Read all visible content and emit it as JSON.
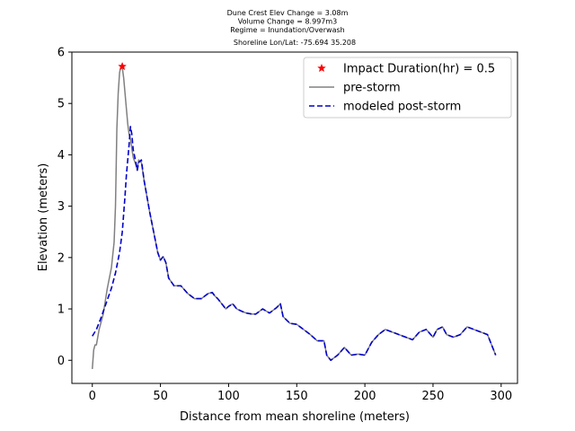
{
  "chart_data": {
    "type": "line",
    "title_lines": [
      "Dune Crest Elev Change = 3.08m",
      "Volume Change = 8.997m3",
      "Regime = Inundation/Overwash",
      "Shoreline Lon/Lat: -75.694 35.208"
    ],
    "xlabel": "Distance from mean shoreline (meters)",
    "ylabel": "Elevation (meters)",
    "xlim": [
      -15,
      312
    ],
    "ylim": [
      -0.45,
      6.0
    ],
    "xticks": [
      0,
      50,
      100,
      150,
      200,
      250,
      300
    ],
    "yticks": [
      0,
      1,
      2,
      3,
      4,
      5,
      6
    ],
    "legend_position": "upper-right",
    "grid": false,
    "series": [
      {
        "name": "Impact Duration(hr) = 0.5",
        "kind": "marker",
        "color": "#ff0000",
        "x": [
          22
        ],
        "y": [
          5.72
        ]
      },
      {
        "name": "pre-storm",
        "kind": "line",
        "color": "#808080",
        "x": [
          0,
          1,
          2,
          3,
          5,
          8,
          11,
          14,
          16,
          17,
          18,
          19,
          20,
          21,
          22,
          23,
          24,
          25,
          26,
          27,
          28,
          30,
          32,
          33,
          34,
          36,
          38,
          40,
          42,
          45,
          48,
          50,
          52,
          54,
          56,
          60,
          65,
          70,
          75,
          80,
          85,
          88,
          90,
          92,
          95,
          98,
          100,
          103,
          106,
          110,
          113,
          117,
          120,
          125,
          130,
          135,
          138,
          140,
          145,
          150,
          155,
          160,
          165,
          170,
          172,
          175,
          180,
          185,
          190,
          195,
          200,
          205,
          210,
          215,
          220,
          225,
          230,
          235,
          240,
          245,
          250,
          253,
          257,
          260,
          265,
          270,
          275,
          280,
          285,
          290,
          293,
          296
        ],
        "y": [
          -0.17,
          0.2,
          0.3,
          0.3,
          0.6,
          0.9,
          1.4,
          1.8,
          2.3,
          3.0,
          4.5,
          5.2,
          5.6,
          5.72,
          5.7,
          5.5,
          5.2,
          4.9,
          4.6,
          4.4,
          4.3,
          3.95,
          3.8,
          3.7,
          3.9,
          3.85,
          3.5,
          3.2,
          2.9,
          2.5,
          2.1,
          1.95,
          2.02,
          1.9,
          1.6,
          1.45,
          1.45,
          1.3,
          1.2,
          1.2,
          1.3,
          1.32,
          1.25,
          1.2,
          1.1,
          1.0,
          1.05,
          1.1,
          1.0,
          0.95,
          0.92,
          0.9,
          0.9,
          1.0,
          0.92,
          1.02,
          1.1,
          0.85,
          0.72,
          0.7,
          0.6,
          0.5,
          0.38,
          0.38,
          0.1,
          0.0,
          0.1,
          0.25,
          0.1,
          0.12,
          0.1,
          0.35,
          0.5,
          0.6,
          0.55,
          0.5,
          0.45,
          0.4,
          0.55,
          0.6,
          0.45,
          0.6,
          0.65,
          0.5,
          0.45,
          0.5,
          0.65,
          0.6,
          0.55,
          0.5,
          0.3,
          0.1
        ],
        "style": "solid"
      },
      {
        "name": "modeled post-storm",
        "kind": "line",
        "color": "#0000cc",
        "x": [
          0,
          3,
          6,
          10,
          14,
          17,
          20,
          22,
          24,
          25,
          26,
          27,
          28,
          29,
          30,
          32,
          33,
          34,
          36,
          38,
          40,
          42,
          45,
          48,
          50,
          52,
          54,
          56,
          60,
          65,
          70,
          75,
          80,
          85,
          88,
          90,
          92,
          95,
          98,
          100,
          103,
          106,
          110,
          113,
          117,
          120,
          125,
          130,
          135,
          138,
          140,
          145,
          150,
          155,
          160,
          165,
          170,
          172,
          175,
          180,
          185,
          190,
          195,
          200,
          205,
          210,
          215,
          220,
          225,
          230,
          235,
          240,
          245,
          250,
          253,
          257,
          260,
          265,
          270,
          275,
          280,
          285,
          290,
          293,
          296
        ],
        "y": [
          0.47,
          0.6,
          0.8,
          1.1,
          1.4,
          1.7,
          2.1,
          2.5,
          3.2,
          3.6,
          3.9,
          4.2,
          4.55,
          4.4,
          4.1,
          3.85,
          3.7,
          3.85,
          3.9,
          3.5,
          3.2,
          2.9,
          2.5,
          2.1,
          1.95,
          2.02,
          1.9,
          1.6,
          1.45,
          1.45,
          1.3,
          1.2,
          1.2,
          1.3,
          1.32,
          1.25,
          1.2,
          1.1,
          1.0,
          1.05,
          1.1,
          1.0,
          0.95,
          0.92,
          0.9,
          0.9,
          1.0,
          0.92,
          1.02,
          1.1,
          0.85,
          0.72,
          0.7,
          0.6,
          0.5,
          0.38,
          0.38,
          0.1,
          0.0,
          0.1,
          0.25,
          0.1,
          0.12,
          0.1,
          0.35,
          0.5,
          0.6,
          0.55,
          0.5,
          0.45,
          0.4,
          0.55,
          0.6,
          0.45,
          0.6,
          0.65,
          0.5,
          0.45,
          0.5,
          0.65,
          0.6,
          0.55,
          0.5,
          0.3,
          0.1
        ],
        "style": "dashed"
      }
    ]
  }
}
